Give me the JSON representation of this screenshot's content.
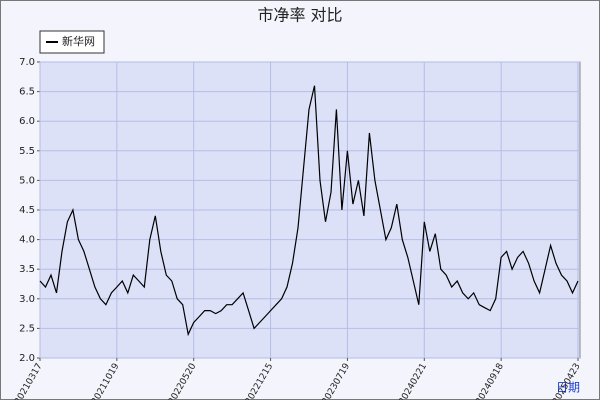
{
  "chart_data": {
    "type": "line",
    "title": "市净率 对比",
    "x_label": "日期",
    "categories": [
      "20210317",
      null,
      null,
      null,
      null,
      null,
      null,
      null,
      null,
      null,
      null,
      null,
      null,
      null,
      "20211019",
      null,
      null,
      null,
      null,
      null,
      null,
      null,
      null,
      null,
      null,
      null,
      null,
      null,
      "20220520",
      null,
      null,
      null,
      null,
      null,
      null,
      null,
      null,
      null,
      null,
      null,
      null,
      null,
      "20221215",
      null,
      null,
      null,
      null,
      null,
      null,
      null,
      null,
      null,
      null,
      null,
      null,
      null,
      "20230719",
      null,
      null,
      null,
      null,
      null,
      null,
      null,
      null,
      null,
      null,
      null,
      null,
      null,
      "20240221",
      null,
      null,
      null,
      null,
      null,
      null,
      null,
      null,
      null,
      null,
      null,
      null,
      null,
      "20240918",
      null,
      null,
      null,
      null,
      null,
      null,
      null,
      null,
      null,
      null,
      null,
      null,
      null,
      "20250423"
    ],
    "series": [
      {
        "name": "新华网",
        "color": "#000000",
        "values": [
          3.3,
          3.2,
          3.4,
          3.1,
          3.8,
          4.3,
          4.5,
          4.0,
          3.8,
          3.5,
          3.2,
          3.0,
          2.9,
          3.1,
          3.2,
          3.3,
          3.1,
          3.4,
          3.3,
          3.2,
          4.0,
          4.4,
          3.8,
          3.4,
          3.3,
          3.0,
          2.9,
          2.4,
          2.6,
          2.7,
          2.8,
          2.8,
          2.75,
          2.8,
          2.9,
          2.9,
          3.0,
          3.1,
          2.8,
          2.5,
          2.6,
          2.7,
          2.8,
          2.9,
          3.0,
          3.2,
          3.6,
          4.2,
          5.2,
          6.2,
          6.6,
          5.0,
          4.3,
          4.8,
          6.2,
          4.5,
          5.5,
          4.6,
          5.0,
          4.4,
          5.8,
          5.0,
          4.5,
          4.0,
          4.2,
          4.6,
          4.0,
          3.7,
          3.3,
          2.9,
          4.3,
          3.8,
          4.1,
          3.5,
          3.4,
          3.2,
          3.3,
          3.1,
          3.0,
          3.1,
          2.9,
          2.85,
          2.8,
          3.0,
          3.7,
          3.8,
          3.5,
          3.7,
          3.8,
          3.6,
          3.3,
          3.1,
          3.5,
          3.9,
          3.6,
          3.4,
          3.3,
          3.1,
          3.3
        ]
      }
    ],
    "ylim": [
      2,
      7
    ],
    "yticks": [
      {
        "value": 2,
        "label": "2.0"
      },
      2.5,
      {
        "value": 3,
        "label": "3.0"
      },
      3.5,
      {
        "value": 4,
        "label": "4.0"
      },
      4.5,
      {
        "value": 5,
        "label": "5.0"
      },
      5.5,
      {
        "value": 6,
        "label": "6.0"
      },
      6.5,
      {
        "value": 7,
        "label": "7.0"
      }
    ],
    "grid": true,
    "legend": "top-left"
  }
}
